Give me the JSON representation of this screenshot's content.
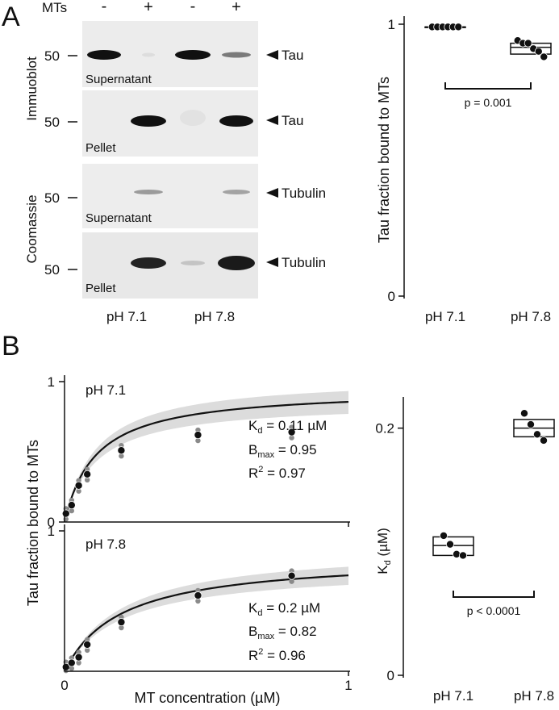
{
  "panel_a": {
    "letter": "A",
    "mts_label": "MTs",
    "lane_marks": [
      "-",
      "+",
      "-",
      "+"
    ],
    "side_labels": [
      "Immuoblot",
      "Coomassie"
    ],
    "marker_label": "50",
    "blots": [
      {
        "sample": "Supernatant",
        "target": "Tau"
      },
      {
        "sample": "Pellet",
        "target": "Tau"
      },
      {
        "sample": "Supernatant",
        "target": "Tubulin"
      },
      {
        "sample": "Pellet",
        "target": "Tubulin"
      }
    ],
    "ph_labels": [
      "pH 7.1",
      "pH 7.8"
    ]
  },
  "panel_b": {
    "letter": "B",
    "xlabel": "MT concentration (µM)",
    "ylabel": "Tau fraction bound to MTs",
    "fits": [
      {
        "title": "pH 7.1",
        "kd": "K",
        "kd_sub": "d",
        "kd_val": " = 0.11 µM",
        "bmax": "B",
        "bmax_sub": "max",
        "bmax_val": " = 0.95",
        "r2": "R",
        "r2_sup": "2",
        "r2_val": " = 0.97"
      },
      {
        "title": "pH 7.8",
        "kd": "K",
        "kd_sub": "d",
        "kd_val": " = 0.2 µM",
        "bmax": "B",
        "bmax_sub": "max",
        "bmax_val": " = 0.82",
        "r2": "R",
        "r2_sup": "2",
        "r2_val": " = 0.96"
      }
    ]
  },
  "chart_data": [
    {
      "type": "box",
      "ylabel": "Tau fraction bound to MTs",
      "ylim": [
        0,
        1
      ],
      "yticks": [
        "0",
        "1"
      ],
      "categories": [
        "pH 7.1",
        "pH 7.8"
      ],
      "points": [
        [
          0.99,
          0.99,
          0.99,
          0.99,
          0.99,
          0.99
        ],
        [
          0.94,
          0.93,
          0.93,
          0.91,
          0.9,
          0.88
        ]
      ],
      "box": [
        {
          "q1": 0.99,
          "median": 0.99,
          "q3": 0.99
        },
        {
          "q1": 0.89,
          "median": 0.915,
          "q3": 0.93
        }
      ],
      "annotation": "p = 0.001"
    },
    {
      "type": "scatter",
      "title": "pH 7.1",
      "xlim": [
        0,
        1
      ],
      "ylim": [
        0,
        1
      ],
      "yticks": [
        "0",
        "1"
      ],
      "x": [
        0.005,
        0.025,
        0.05,
        0.08,
        0.2,
        0.47,
        0.8
      ],
      "y": [
        0.06,
        0.12,
        0.26,
        0.34,
        0.51,
        0.62,
        0.64
      ],
      "fit": {
        "kd": 0.11,
        "bmax": 0.95
      }
    },
    {
      "type": "scatter",
      "title": "pH 7.8",
      "xlim": [
        0,
        1
      ],
      "ylim": [
        0,
        1
      ],
      "xticks": [
        "0",
        "1"
      ],
      "yticks": [
        "1"
      ],
      "x": [
        0.005,
        0.025,
        0.05,
        0.08,
        0.2,
        0.47,
        0.8
      ],
      "y": [
        0.03,
        0.06,
        0.1,
        0.19,
        0.35,
        0.54,
        0.68
      ],
      "fit": {
        "kd": 0.2,
        "bmax": 0.82
      }
    },
    {
      "type": "box",
      "ylabel": "Kd (µM)",
      "ylim": [
        0,
        0.22
      ],
      "yticks": [
        "0",
        "0.2"
      ],
      "categories": [
        "pH 7.1",
        "pH 7.8"
      ],
      "points": [
        [
          0.113,
          0.106,
          0.098,
          0.097
        ],
        [
          0.212,
          0.203,
          0.195,
          0.19
        ]
      ],
      "box": [
        {
          "q1": 0.097,
          "median": 0.105,
          "q3": 0.112
        },
        {
          "q1": 0.193,
          "median": 0.2,
          "q3": 0.207
        }
      ],
      "annotation": "p < 0.0001"
    }
  ]
}
